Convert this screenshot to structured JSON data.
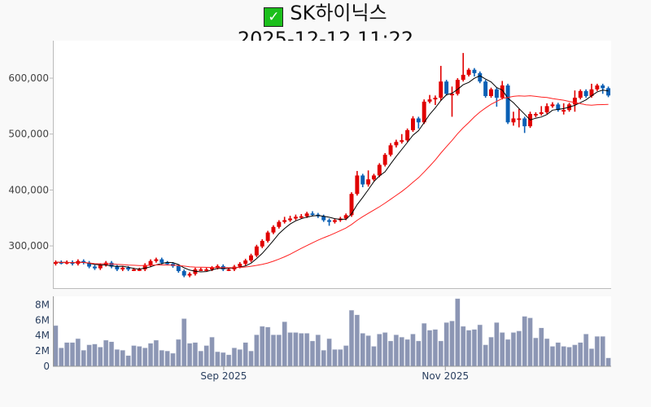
{
  "header": {
    "icon": "check-mark-button-icon",
    "title": "SK하이닉스",
    "timestamp": "2025-12-12 11:22"
  },
  "chart_data": [
    {
      "type": "candlestick",
      "name": "price",
      "unit": "KRW",
      "colors": {
        "up": "#e00000",
        "down": "#0a5fb4",
        "ma5": "#000000",
        "ma20": "#ff2020"
      },
      "moving_averages": [
        {
          "name": "MA5",
          "window": 5
        },
        {
          "name": "MA20",
          "window": 20
        }
      ],
      "ylim": [
        223000,
        667000
      ],
      "yticks": [
        300000,
        400000,
        500000,
        600000
      ],
      "ytick_labels": [
        "300,000",
        "400,000",
        "500,000",
        "600,000"
      ],
      "open": [
        268000,
        271000,
        270000,
        271000,
        268000,
        273000,
        270000,
        263000,
        260000,
        266000,
        270000,
        263000,
        258000,
        261000,
        258000,
        258000,
        258000,
        266000,
        273000,
        276000,
        270000,
        268000,
        264000,
        255000,
        247000,
        250000,
        258000,
        258000,
        258000,
        261000,
        264000,
        258000,
        258000,
        263000,
        268000,
        274000,
        283000,
        299000,
        309000,
        324000,
        334000,
        343000,
        346000,
        349000,
        352000,
        353000,
        358000,
        356000,
        353000,
        346000,
        343000,
        346000,
        349000,
        355000,
        393000,
        426000,
        410000,
        419000,
        426000,
        445000,
        463000,
        480000,
        486000,
        489000,
        507000,
        528000,
        521000,
        558000,
        562000,
        565000,
        594000,
        572000,
        572000,
        597000,
        606000,
        615000,
        609000,
        594000,
        568000,
        580000,
        565000,
        587000,
        521000,
        528000,
        528000,
        514000,
        536000,
        536000,
        539000,
        550000,
        553000,
        543000,
        543000,
        553000,
        565000,
        577000,
        568000,
        580000,
        587000,
        582000
      ],
      "high": [
        274000,
        274000,
        274000,
        274000,
        276000,
        276000,
        273000,
        266000,
        269000,
        273000,
        273000,
        266000,
        264000,
        264000,
        261000,
        261000,
        269000,
        276000,
        279000,
        279000,
        273000,
        271000,
        267000,
        258000,
        253000,
        261000,
        261000,
        261000,
        264000,
        267000,
        267000,
        261000,
        266000,
        271000,
        277000,
        286000,
        302000,
        312000,
        327000,
        337000,
        346000,
        352000,
        354000,
        356000,
        357000,
        361000,
        362000,
        359000,
        356000,
        349000,
        349000,
        352000,
        358000,
        396000,
        434000,
        429000,
        435000,
        429000,
        448000,
        466000,
        484000,
        490000,
        500000,
        510000,
        532000,
        531000,
        562000,
        570000,
        569000,
        622000,
        597000,
        585000,
        600000,
        645000,
        618000,
        618000,
        612000,
        597000,
        583000,
        583000,
        595000,
        590000,
        540000,
        545000,
        531000,
        540000,
        539000,
        550000,
        555000,
        557000,
        556000,
        555000,
        556000,
        578000,
        580000,
        580000,
        590000,
        590000,
        590000,
        585000
      ],
      "low": [
        265000,
        267000,
        267000,
        265000,
        265000,
        267000,
        260000,
        257000,
        257000,
        263000,
        260000,
        255000,
        255000,
        255000,
        255000,
        255000,
        255000,
        263000,
        270000,
        267000,
        265000,
        261000,
        252000,
        244000,
        244000,
        247000,
        255000,
        255000,
        255000,
        258000,
        255000,
        255000,
        255000,
        260000,
        265000,
        271000,
        280000,
        296000,
        306000,
        321000,
        331000,
        340000,
        343000,
        346000,
        349000,
        350000,
        353000,
        350000,
        343000,
        336000,
        340000,
        343000,
        346000,
        352000,
        390000,
        405000,
        406000,
        416000,
        423000,
        442000,
        460000,
        476000,
        483000,
        486000,
        504000,
        510000,
        518000,
        555000,
        552000,
        560000,
        569000,
        531000,
        569000,
        594000,
        603000,
        603000,
        591000,
        565000,
        565000,
        549000,
        562000,
        518000,
        515000,
        512000,
        502000,
        511000,
        530000,
        533000,
        536000,
        547000,
        540000,
        535000,
        540000,
        540000,
        562000,
        565000,
        565000,
        577000,
        572000,
        566000
      ],
      "close": [
        271000,
        270000,
        271000,
        268000,
        273000,
        270000,
        263000,
        260000,
        266000,
        270000,
        263000,
        258000,
        261000,
        258000,
        258000,
        258000,
        266000,
        273000,
        276000,
        270000,
        268000,
        264000,
        255000,
        247000,
        250000,
        258000,
        258000,
        258000,
        261000,
        264000,
        258000,
        258000,
        263000,
        268000,
        274000,
        283000,
        299000,
        309000,
        324000,
        334000,
        343000,
        346000,
        349000,
        352000,
        353000,
        358000,
        356000,
        353000,
        346000,
        343000,
        346000,
        349000,
        355000,
        393000,
        426000,
        410000,
        419000,
        426000,
        445000,
        463000,
        480000,
        486000,
        489000,
        507000,
        528000,
        521000,
        558000,
        562000,
        565000,
        594000,
        572000,
        572000,
        597000,
        606000,
        615000,
        609000,
        594000,
        568000,
        580000,
        565000,
        587000,
        521000,
        528000,
        528000,
        514000,
        536000,
        536000,
        539000,
        550000,
        553000,
        543000,
        543000,
        553000,
        565000,
        577000,
        568000,
        580000,
        587000,
        582000,
        569000
      ]
    },
    {
      "type": "bar",
      "name": "volume",
      "unit": "shares (millions)",
      "color": "#8c96b4",
      "ylim": [
        0,
        9.1
      ],
      "yticks": [
        0,
        2,
        4,
        6,
        8
      ],
      "ytick_labels": [
        "0",
        "2M",
        "4M",
        "6M",
        "8M"
      ],
      "values": [
        5.3,
        2.4,
        3.1,
        3.1,
        3.6,
        2.1,
        2.8,
        2.9,
        2.5,
        3.4,
        3.2,
        2.2,
        2.1,
        1.4,
        2.7,
        2.6,
        2.4,
        3.0,
        3.4,
        2.1,
        2.0,
        1.7,
        3.5,
        6.2,
        3.0,
        3.1,
        2.0,
        2.7,
        3.8,
        1.9,
        1.8,
        1.5,
        2.4,
        2.2,
        3.1,
        2.0,
        4.1,
        5.2,
        5.1,
        4.1,
        4.1,
        5.8,
        4.4,
        4.4,
        4.3,
        4.3,
        3.3,
        4.1,
        2.1,
        3.6,
        2.2,
        2.2,
        2.7,
        7.3,
        6.7,
        4.3,
        4.0,
        2.6,
        4.2,
        4.4,
        3.3,
        4.1,
        3.8,
        3.5,
        4.2,
        3.3,
        5.6,
        4.7,
        4.8,
        3.3,
        5.7,
        5.9,
        8.8,
        5.2,
        4.7,
        4.8,
        5.4,
        2.8,
        3.8,
        5.7,
        4.4,
        3.5,
        4.4,
        4.6,
        6.5,
        6.3,
        3.7,
        5.0,
        3.6,
        2.6,
        3.1,
        2.6,
        2.5,
        2.8,
        3.1,
        4.2,
        2.3,
        3.9,
        3.9,
        1.1
      ]
    }
  ],
  "x_axis": {
    "range": [
      -0.5,
      99.5
    ],
    "ticks": [
      {
        "pos": 30.1,
        "label": "Sep 2025"
      },
      {
        "pos": 69.8,
        "label": "Nov 2025"
      }
    ]
  }
}
